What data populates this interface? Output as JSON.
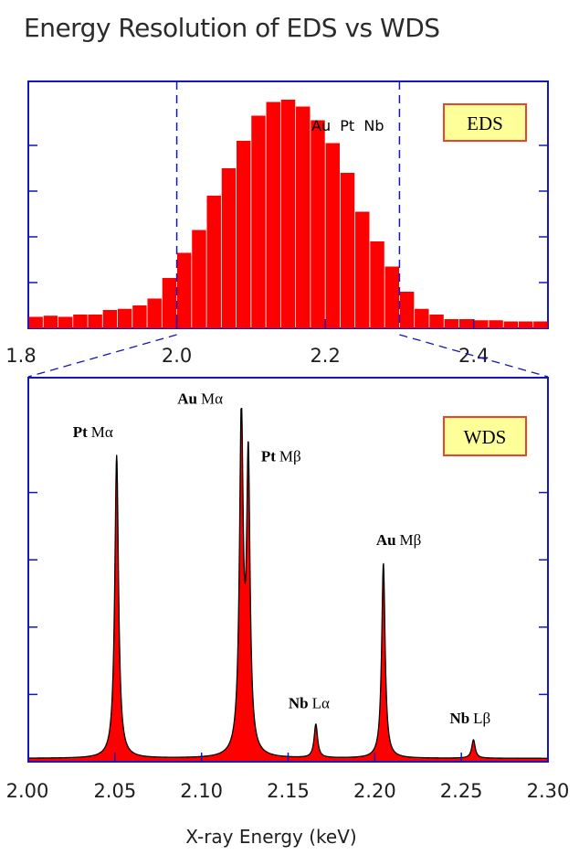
{
  "title": "Energy Resolution of EDS vs WDS",
  "chart_data": [
    {
      "type": "bar",
      "label": "EDS",
      "annotation": "Au  Pt  Nb",
      "xlim": [
        1.8,
        2.5
      ],
      "ylim": [
        0,
        1.0
      ],
      "x_ticks": [
        "1.8",
        "2.0",
        "2.2",
        "2.4"
      ],
      "x_tick_values": [
        1.8,
        2.0,
        2.2,
        2.4
      ],
      "y_ticks": [
        0.2,
        0.4,
        0.6,
        0.8
      ],
      "zoom_range": [
        2.0,
        2.3
      ],
      "bar_width": 0.019,
      "x": [
        1.81,
        1.83,
        1.85,
        1.87,
        1.89,
        1.91,
        1.93,
        1.95,
        1.97,
        1.99,
        2.01,
        2.03,
        2.05,
        2.07,
        2.09,
        2.11,
        2.13,
        2.15,
        2.17,
        2.19,
        2.21,
        2.23,
        2.25,
        2.27,
        2.29,
        2.31,
        2.33,
        2.35,
        2.37,
        2.39,
        2.41,
        2.43,
        2.45,
        2.47,
        2.49
      ],
      "values": [
        0.05,
        0.055,
        0.05,
        0.06,
        0.06,
        0.08,
        0.085,
        0.1,
        0.13,
        0.22,
        0.33,
        0.43,
        0.58,
        0.7,
        0.82,
        0.93,
        0.99,
        1.0,
        0.97,
        0.91,
        0.81,
        0.68,
        0.51,
        0.38,
        0.27,
        0.16,
        0.085,
        0.06,
        0.04,
        0.04,
        0.035,
        0.035,
        0.03,
        0.03,
        0.03
      ],
      "bar_color": "#ff0000",
      "grid": false
    },
    {
      "type": "area",
      "label": "WDS",
      "xlabel": "X-ray Energy (keV)",
      "xlim": [
        2.0,
        2.3
      ],
      "ylim": [
        0,
        1.0
      ],
      "x_ticks": [
        "2.00",
        "2.05",
        "2.10",
        "2.15",
        "2.20",
        "2.25",
        "2.30"
      ],
      "x_tick_values": [
        2.0,
        2.05,
        2.1,
        2.15,
        2.2,
        2.25,
        2.3
      ],
      "y_ticks": [
        0.2,
        0.4,
        0.6,
        0.8
      ],
      "baseline": 0.01,
      "peaks": [
        {
          "element": "Pt",
          "line": "Mα",
          "x": 2.051,
          "height": 0.9,
          "width": 0.0013
        },
        {
          "element": "Au",
          "line": "Mα",
          "x": 2.123,
          "height": 1.0,
          "width": 0.0013
        },
        {
          "element": "Pt",
          "line": "Mβ",
          "x": 2.127,
          "height": 0.85,
          "width": 0.0012
        },
        {
          "element": "Nb",
          "line": "Lα",
          "x": 2.166,
          "height": 0.1,
          "width": 0.0012
        },
        {
          "element": "Au",
          "line": "Mβ",
          "x": 2.205,
          "height": 0.58,
          "width": 0.0012
        },
        {
          "element": "Nb",
          "line": "Lβ",
          "x": 2.257,
          "height": 0.055,
          "width": 0.0012
        }
      ],
      "fill_color": "#ff0000",
      "grid": false
    }
  ],
  "colors": {
    "axis": "#1515b8",
    "box_fill": "#ffff99",
    "box_border": "#e8452a",
    "dashed": "#1515b8"
  }
}
